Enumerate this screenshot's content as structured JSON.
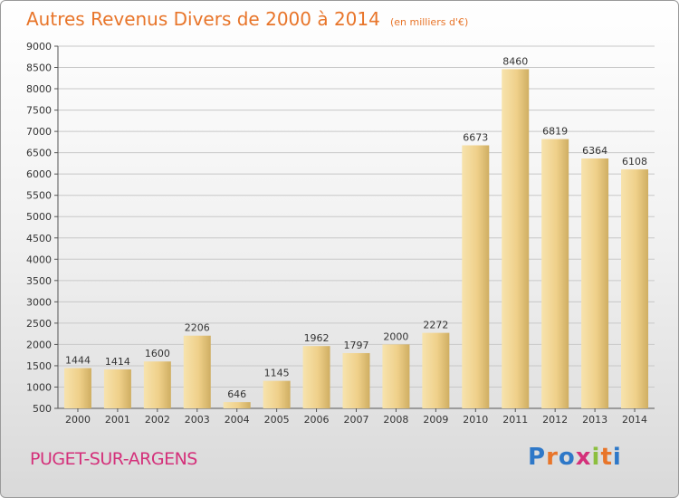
{
  "title": "Autres Revenus Divers de 2000 à 2014",
  "unit_note": "(en milliers d'€)",
  "commune": "PUGET-SUR-ARGENS",
  "brand": "Proxiti",
  "colors": {
    "title": "#e8752a",
    "commune": "#d4307a",
    "bar_light": "#f6dfa2",
    "bar_dark": "#cfae62"
  },
  "chart_data": {
    "type": "bar",
    "categories": [
      "2000",
      "2001",
      "2002",
      "2003",
      "2004",
      "2005",
      "2006",
      "2007",
      "2008",
      "2009",
      "2010",
      "2011",
      "2012",
      "2013",
      "2014"
    ],
    "values": [
      1444,
      1414,
      1600,
      2206,
      646,
      1145,
      1962,
      1797,
      2000,
      2272,
      6673,
      8460,
      6819,
      6364,
      6108
    ],
    "ylim": [
      500,
      9000
    ],
    "yticks": [
      500,
      1000,
      1500,
      2000,
      2500,
      3000,
      3500,
      4000,
      4500,
      5000,
      5500,
      6000,
      6500,
      7000,
      7500,
      8000,
      8500,
      9000
    ],
    "grid": true
  }
}
